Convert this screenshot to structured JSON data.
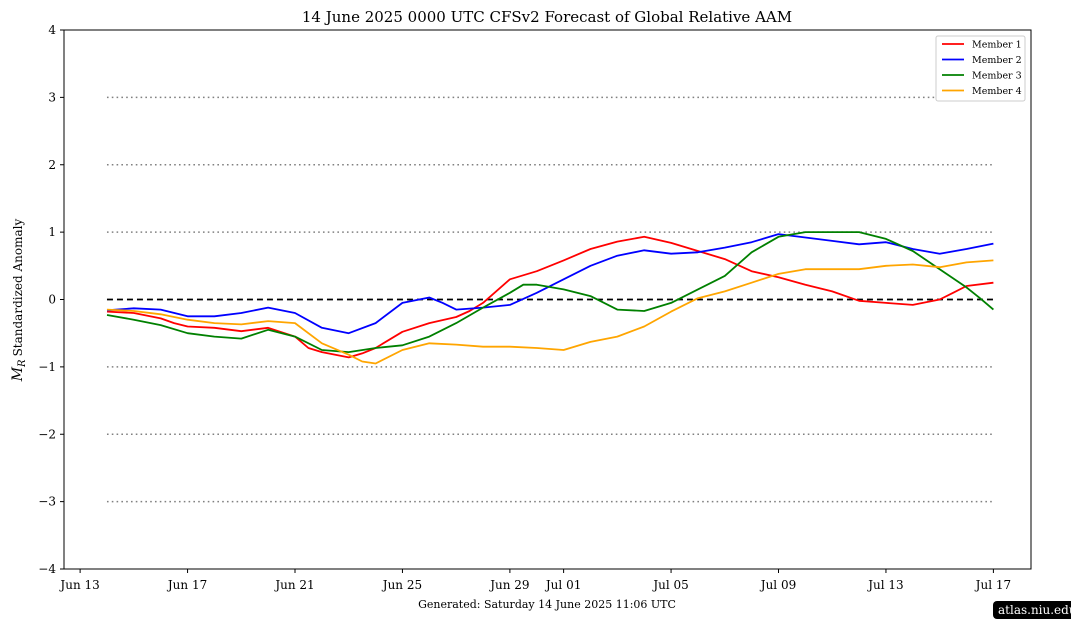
{
  "chart_data": {
    "type": "line",
    "title": "14  June  2025 0000 UTC   CFSv2 Forecast of Global Relative AAM",
    "ylabel_symbol": "M",
    "ylabel_subscript": "R",
    "ylabel": "Standardized Anomaly",
    "footer": "Generated: Saturday  14  June  2025  11:06 UTC",
    "ylim": [
      -4,
      4
    ],
    "yticks": [
      4,
      3,
      2,
      1,
      0,
      -1,
      -2,
      -3,
      -4
    ],
    "ytick_labels": [
      "4",
      "3",
      "2",
      "1",
      "0",
      "−1",
      "−2",
      "−3",
      "−4"
    ],
    "xlim_days": [
      -1.6,
      34.4
    ],
    "xticks": [
      {
        "day": -1,
        "label": "Jun 13"
      },
      {
        "day": 3,
        "label": "Jun 17"
      },
      {
        "day": 7,
        "label": "Jun 21"
      },
      {
        "day": 11,
        "label": "Jun 25"
      },
      {
        "day": 15,
        "label": "Jun 29"
      },
      {
        "day": 17,
        "label": "Jul 01"
      },
      {
        "day": 21,
        "label": "Jul 05"
      },
      {
        "day": 25,
        "label": "Jul 09"
      },
      {
        "day": 29,
        "label": "Jul 13"
      },
      {
        "day": 33,
        "label": "Jul 17"
      }
    ],
    "x_reference_date": "Jun 14",
    "reference_lines": [
      {
        "y": 3,
        "style": "dotted",
        "color": "#808080"
      },
      {
        "y": 2,
        "style": "dotted",
        "color": "#808080"
      },
      {
        "y": 1,
        "style": "dotted",
        "color": "#808080"
      },
      {
        "y": 0,
        "style": "dashed",
        "color": "#000000"
      },
      {
        "y": -1,
        "style": "dotted",
        "color": "#808080"
      },
      {
        "y": -2,
        "style": "dotted",
        "color": "#808080"
      },
      {
        "y": -3,
        "style": "dotted",
        "color": "#808080"
      }
    ],
    "legend_position": "top-right",
    "series": [
      {
        "name": "Member 1",
        "color": "#ff0000",
        "points": [
          [
            0,
            -0.18
          ],
          [
            1,
            -0.2
          ],
          [
            2,
            -0.28
          ],
          [
            2.5,
            -0.35
          ],
          [
            3,
            -0.4
          ],
          [
            4,
            -0.42
          ],
          [
            5,
            -0.47
          ],
          [
            6,
            -0.42
          ],
          [
            7,
            -0.55
          ],
          [
            7.5,
            -0.72
          ],
          [
            8,
            -0.78
          ],
          [
            9,
            -0.86
          ],
          [
            9.5,
            -0.8
          ],
          [
            10,
            -0.72
          ],
          [
            11,
            -0.48
          ],
          [
            12,
            -0.35
          ],
          [
            13,
            -0.26
          ],
          [
            13.5,
            -0.17
          ],
          [
            14,
            -0.05
          ],
          [
            15,
            0.3
          ],
          [
            16,
            0.42
          ],
          [
            17,
            0.58
          ],
          [
            18,
            0.75
          ],
          [
            19,
            0.86
          ],
          [
            20,
            0.93
          ],
          [
            21,
            0.84
          ],
          [
            22,
            0.72
          ],
          [
            23,
            0.6
          ],
          [
            24,
            0.42
          ],
          [
            25,
            0.33
          ],
          [
            26,
            0.22
          ],
          [
            27,
            0.12
          ],
          [
            28,
            -0.02
          ],
          [
            29,
            -0.05
          ],
          [
            30,
            -0.08
          ],
          [
            31,
            0.0
          ],
          [
            31.5,
            0.1
          ],
          [
            32,
            0.2
          ],
          [
            33,
            0.25
          ]
        ]
      },
      {
        "name": "Member 2",
        "color": "#0000ff",
        "points": [
          [
            0,
            -0.16
          ],
          [
            1,
            -0.13
          ],
          [
            2,
            -0.15
          ],
          [
            3,
            -0.25
          ],
          [
            4,
            -0.25
          ],
          [
            5,
            -0.2
          ],
          [
            6,
            -0.12
          ],
          [
            7,
            -0.2
          ],
          [
            8,
            -0.42
          ],
          [
            9,
            -0.5
          ],
          [
            10,
            -0.35
          ],
          [
            11,
            -0.05
          ],
          [
            12,
            0.03
          ],
          [
            12.5,
            -0.05
          ],
          [
            13,
            -0.15
          ],
          [
            14,
            -0.12
          ],
          [
            15,
            -0.08
          ],
          [
            16,
            0.1
          ],
          [
            17,
            0.3
          ],
          [
            18,
            0.5
          ],
          [
            19,
            0.65
          ],
          [
            20,
            0.73
          ],
          [
            21,
            0.68
          ],
          [
            22,
            0.7
          ],
          [
            23,
            0.77
          ],
          [
            24,
            0.85
          ],
          [
            25,
            0.97
          ],
          [
            26,
            0.92
          ],
          [
            27,
            0.87
          ],
          [
            28,
            0.82
          ],
          [
            29,
            0.85
          ],
          [
            30,
            0.75
          ],
          [
            31,
            0.68
          ],
          [
            32,
            0.75
          ],
          [
            33,
            0.83
          ]
        ]
      },
      {
        "name": "Member 3",
        "color": "#008000",
        "points": [
          [
            0,
            -0.23
          ],
          [
            1,
            -0.3
          ],
          [
            2,
            -0.38
          ],
          [
            3,
            -0.5
          ],
          [
            4,
            -0.55
          ],
          [
            5,
            -0.58
          ],
          [
            6,
            -0.45
          ],
          [
            7,
            -0.55
          ],
          [
            8,
            -0.75
          ],
          [
            9,
            -0.78
          ],
          [
            10,
            -0.72
          ],
          [
            11,
            -0.68
          ],
          [
            12,
            -0.55
          ],
          [
            13,
            -0.35
          ],
          [
            14,
            -0.12
          ],
          [
            15,
            0.1
          ],
          [
            15.5,
            0.22
          ],
          [
            16,
            0.22
          ],
          [
            17,
            0.15
          ],
          [
            18,
            0.05
          ],
          [
            19,
            -0.15
          ],
          [
            20,
            -0.17
          ],
          [
            21,
            -0.05
          ],
          [
            22,
            0.15
          ],
          [
            23,
            0.35
          ],
          [
            24,
            0.7
          ],
          [
            25,
            0.93
          ],
          [
            26,
            1.0
          ],
          [
            27,
            1.0
          ],
          [
            28,
            1.0
          ],
          [
            29,
            0.9
          ],
          [
            30,
            0.72
          ],
          [
            31,
            0.45
          ],
          [
            32,
            0.18
          ],
          [
            32.5,
            0.02
          ],
          [
            33,
            -0.15
          ]
        ]
      },
      {
        "name": "Member 4",
        "color": "#ffa500",
        "points": [
          [
            0,
            -0.15
          ],
          [
            1,
            -0.17
          ],
          [
            2,
            -0.22
          ],
          [
            3,
            -0.3
          ],
          [
            4,
            -0.35
          ],
          [
            5,
            -0.37
          ],
          [
            6,
            -0.32
          ],
          [
            7,
            -0.35
          ],
          [
            8,
            -0.65
          ],
          [
            9,
            -0.82
          ],
          [
            9.5,
            -0.92
          ],
          [
            10,
            -0.95
          ],
          [
            11,
            -0.75
          ],
          [
            12,
            -0.65
          ],
          [
            13,
            -0.67
          ],
          [
            14,
            -0.7
          ],
          [
            15,
            -0.7
          ],
          [
            16,
            -0.72
          ],
          [
            17,
            -0.75
          ],
          [
            18,
            -0.63
          ],
          [
            19,
            -0.55
          ],
          [
            20,
            -0.4
          ],
          [
            21,
            -0.18
          ],
          [
            22,
            0.02
          ],
          [
            23,
            0.12
          ],
          [
            24,
            0.25
          ],
          [
            25,
            0.38
          ],
          [
            26,
            0.45
          ],
          [
            27,
            0.45
          ],
          [
            28,
            0.45
          ],
          [
            29,
            0.5
          ],
          [
            30,
            0.52
          ],
          [
            31,
            0.48
          ],
          [
            32,
            0.55
          ],
          [
            33,
            0.58
          ]
        ]
      }
    ]
  },
  "watermark": "atlas.niu.edu"
}
